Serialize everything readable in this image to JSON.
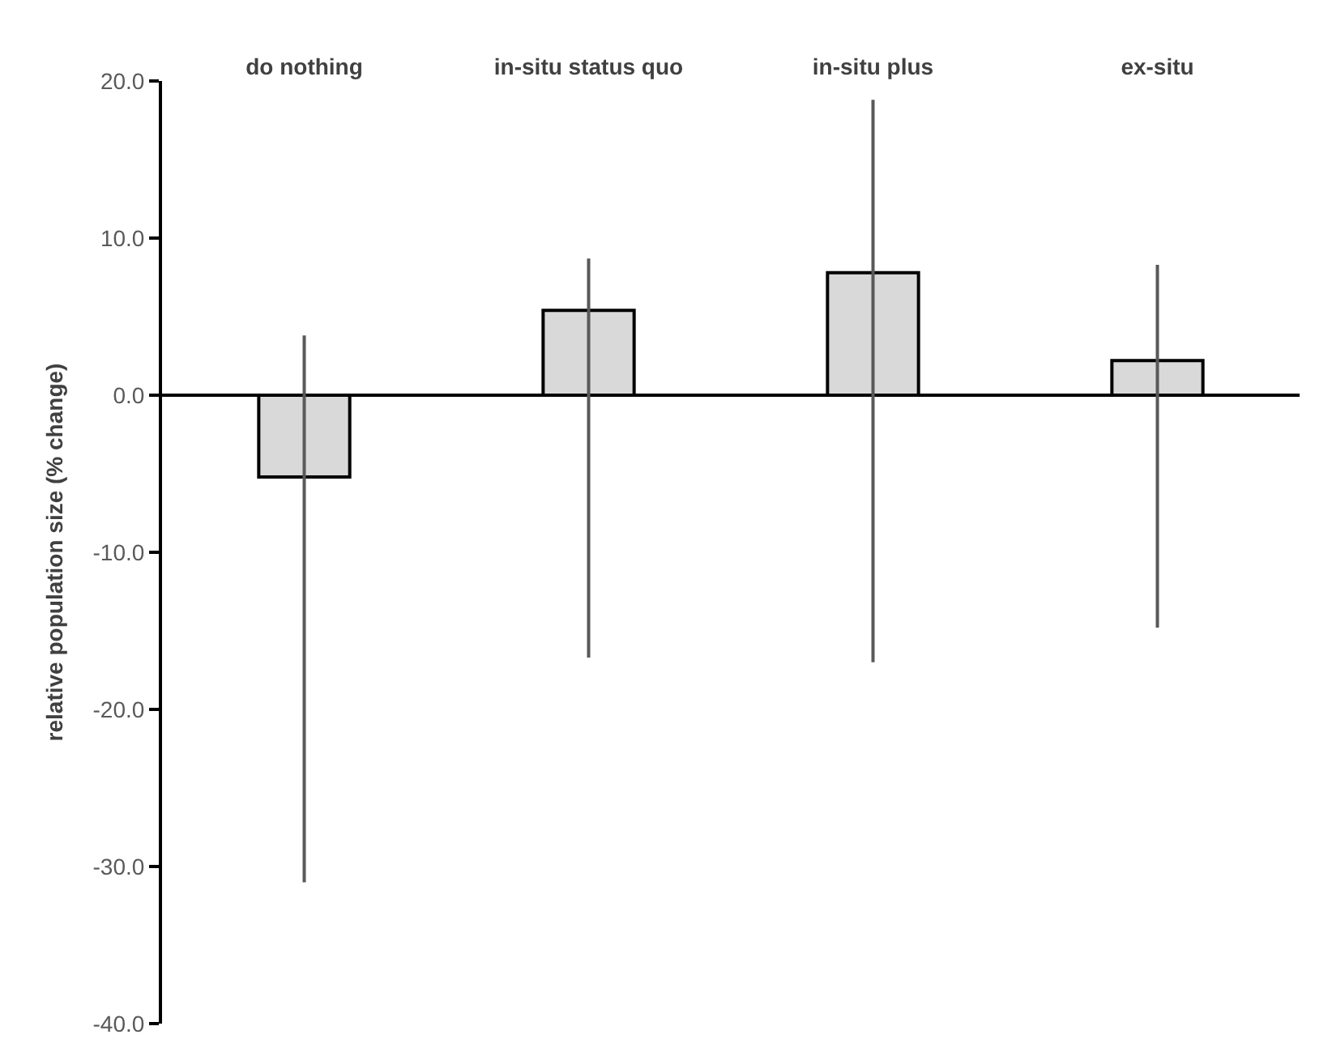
{
  "chart_data": {
    "type": "bar",
    "ylabel": "relative population size (% change)",
    "categories": [
      "do nothing",
      "in-situ status quo",
      "in-situ plus",
      "ex-situ"
    ],
    "values": [
      -5.2,
      5.4,
      7.8,
      2.2
    ],
    "errors": [
      [
        -31.0,
        3.8
      ],
      [
        -16.7,
        8.7
      ],
      [
        -17.0,
        18.8
      ],
      [
        -14.8,
        8.3
      ]
    ],
    "color": "#d9d9d9",
    "ylim": [
      -40,
      20
    ],
    "yticks": [
      {
        "value": -40,
        "label": "-40.0"
      },
      {
        "value": -30,
        "label": "-30.0"
      },
      {
        "value": -20,
        "label": "-20.0"
      },
      {
        "value": -10,
        "label": "-10.0"
      },
      {
        "value": 0,
        "label": "0.0"
      },
      {
        "value": 10,
        "label": "10.0"
      },
      {
        "value": 20,
        "label": "20.0"
      }
    ],
    "legend": false
  }
}
